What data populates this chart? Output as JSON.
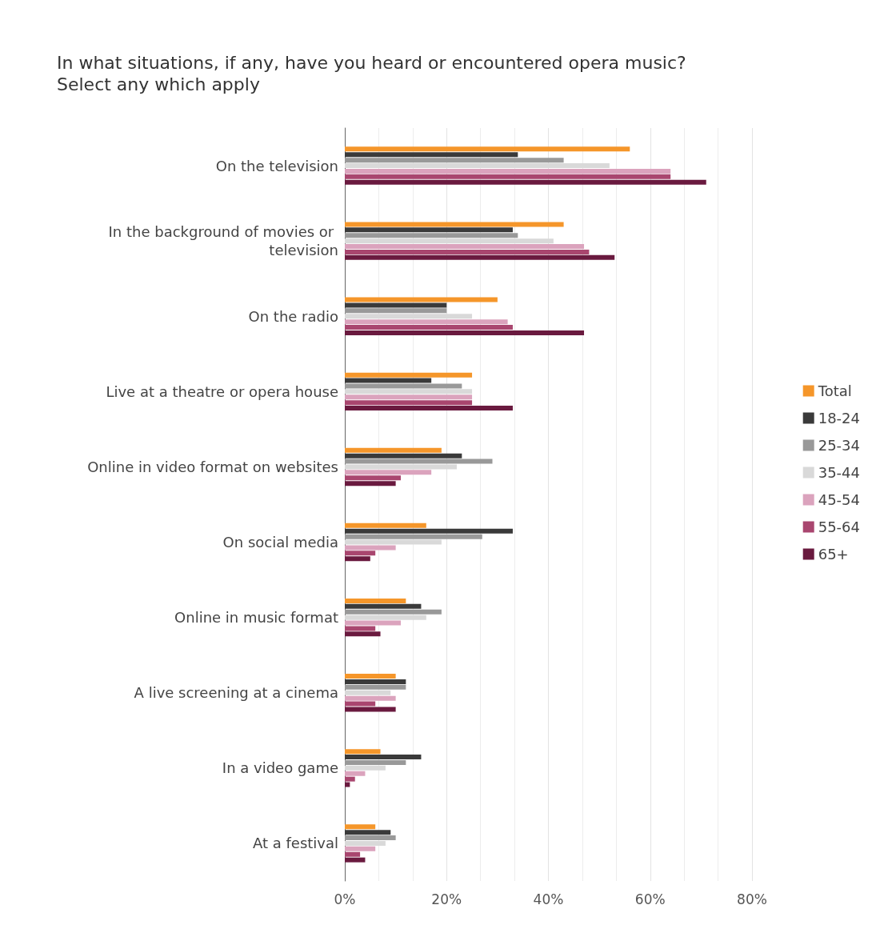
{
  "chart_data": {
    "type": "bar",
    "orientation": "horizontal",
    "title": "In what situations, if any, have you heard or encountered opera music? Select any which apply",
    "categories": [
      "On the television",
      "In the background of movies or television",
      "On the radio",
      "Live at a theatre or opera house",
      "Online in video format on websites",
      "On social media",
      "Online in music format",
      "A live screening at a cinema",
      "In a video game",
      "At a festival"
    ],
    "series": [
      {
        "name": "Total",
        "color": "#f5962a",
        "values": [
          56,
          43,
          30,
          25,
          19,
          16,
          12,
          10,
          7,
          6
        ]
      },
      {
        "name": "18-24",
        "color": "#3a3a3a",
        "values": [
          34,
          33,
          20,
          17,
          23,
          33,
          15,
          12,
          15,
          9
        ]
      },
      {
        "name": "25-34",
        "color": "#999999",
        "values": [
          43,
          34,
          20,
          23,
          29,
          27,
          19,
          12,
          12,
          10
        ]
      },
      {
        "name": "35-44",
        "color": "#d9d9d9",
        "values": [
          52,
          41,
          25,
          25,
          22,
          19,
          16,
          9,
          8,
          8
        ]
      },
      {
        "name": "45-54",
        "color": "#dba3bd",
        "values": [
          64,
          47,
          32,
          25,
          17,
          10,
          11,
          10,
          4,
          6
        ]
      },
      {
        "name": "55-64",
        "color": "#a9466f",
        "values": [
          64,
          48,
          33,
          25,
          11,
          6,
          6,
          6,
          2,
          3
        ]
      },
      {
        "name": "65+",
        "color": "#6a1a3f",
        "values": [
          71,
          53,
          47,
          33,
          10,
          5,
          7,
          10,
          1,
          4
        ]
      }
    ],
    "xlim": [
      0,
      80
    ],
    "xticks": [
      {
        "value": 0,
        "label": "0%"
      },
      {
        "value": 20,
        "label": "20%"
      },
      {
        "value": 40,
        "label": "40%"
      },
      {
        "value": 60,
        "label": "60%"
      },
      {
        "value": 80,
        "label": "80%"
      }
    ],
    "grid": "x",
    "legend": "right"
  }
}
